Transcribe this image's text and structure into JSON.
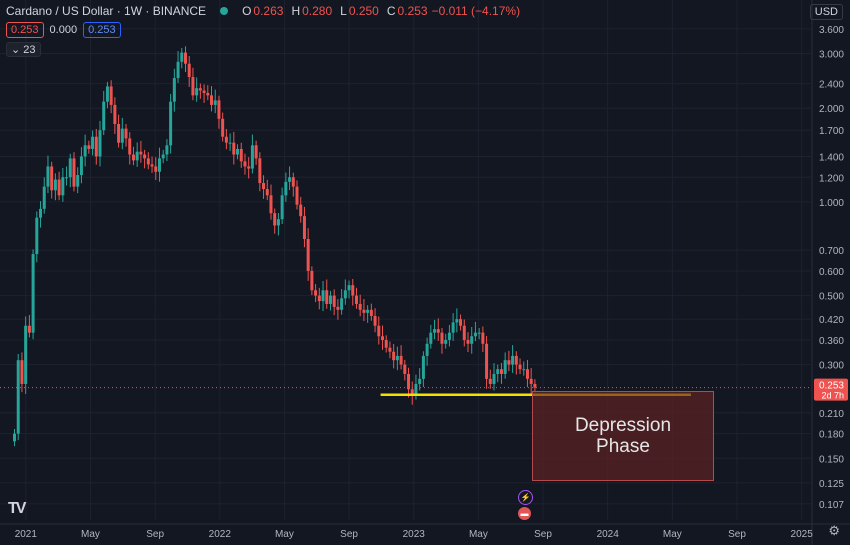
{
  "header": {
    "symbol_title": "Cardano / US Dollar · 1W · BINANCE",
    "o_label": "O",
    "o_value": "0.263",
    "h_label": "H",
    "h_value": "0.280",
    "l_label": "L",
    "l_value": "0.250",
    "c_label": "C",
    "c_value": "0.253",
    "change": "−0.011 (−4.17%)"
  },
  "order_boxes": {
    "sell": "0.253",
    "spread": "0.000",
    "buy": "0.253"
  },
  "indicator_count": "23",
  "currency_button": "USD",
  "annotation_text": "Depression\nPhase",
  "logo_text": "TV",
  "settings_icon": "gear-icon",
  "events": [
    {
      "icon": "lightning-icon",
      "color": "#a855f7"
    },
    {
      "icon": "flag-icon",
      "color": "#e25555"
    }
  ],
  "colors": {
    "up": "#26a69a",
    "down": "#ef5350",
    "support_line": "#f5e100",
    "background": "#131722"
  },
  "chart_data": {
    "type": "candlestick",
    "symbol": "Cardano / US Dollar",
    "interval": "1W",
    "exchange": "BINANCE",
    "y_scale": "log",
    "ylim": [
      0.095,
      3.9
    ],
    "y_ticks": [
      "3.600",
      "3.000",
      "2.400",
      "2.000",
      "1.700",
      "1.400",
      "1.200",
      "1.000",
      "0.700",
      "0.600",
      "0.500",
      "0.420",
      "0.360",
      "0.300",
      "0.210",
      "0.180",
      "0.150",
      "0.125",
      "0.107"
    ],
    "x_ticks": [
      "2021",
      "May",
      "Sep",
      "2022",
      "May",
      "Sep",
      "2023",
      "May",
      "Sep",
      "2024",
      "May",
      "Sep",
      "2025"
    ],
    "last_price": "0.253",
    "countdown": "2d 7h",
    "support_level": 0.24,
    "support_from": "2022-11",
    "support_to": "2024-06",
    "candles_weekly_close": [
      0.18,
      0.31,
      0.26,
      0.4,
      0.38,
      0.68,
      0.89,
      0.95,
      1.12,
      1.3,
      1.09,
      1.18,
      1.05,
      1.2,
      1.2,
      1.38,
      1.12,
      1.22,
      1.4,
      1.52,
      1.48,
      1.62,
      1.4,
      1.7,
      2.1,
      2.35,
      2.05,
      1.78,
      1.55,
      1.72,
      1.6,
      1.42,
      1.36,
      1.45,
      1.42,
      1.38,
      1.32,
      1.3,
      1.25,
      1.38,
      1.42,
      1.52,
      2.1,
      2.5,
      2.82,
      3.02,
      2.78,
      2.52,
      2.2,
      2.32,
      2.28,
      2.24,
      2.2,
      2.05,
      2.12,
      1.85,
      1.62,
      1.55,
      1.55,
      1.42,
      1.48,
      1.35,
      1.3,
      1.28,
      1.52,
      1.38,
      1.15,
      1.1,
      1.05,
      0.92,
      0.84,
      0.88,
      1.05,
      1.16,
      1.2,
      1.12,
      0.98,
      0.9,
      0.76,
      0.6,
      0.52,
      0.5,
      0.48,
      0.52,
      0.47,
      0.5,
      0.46,
      0.45,
      0.49,
      0.52,
      0.54,
      0.5,
      0.47,
      0.45,
      0.44,
      0.45,
      0.43,
      0.4,
      0.37,
      0.36,
      0.34,
      0.33,
      0.31,
      0.32,
      0.3,
      0.28,
      0.25,
      0.24,
      0.26,
      0.27,
      0.32,
      0.35,
      0.38,
      0.39,
      0.38,
      0.35,
      0.36,
      0.38,
      0.41,
      0.42,
      0.4,
      0.36,
      0.35,
      0.37,
      0.38,
      0.38,
      0.35,
      0.27,
      0.26,
      0.28,
      0.29,
      0.28,
      0.31,
      0.3,
      0.32,
      0.3,
      0.29,
      0.29,
      0.27,
      0.26,
      0.253
    ],
    "x_range": [
      "2020-12",
      "2025-01"
    ],
    "annotation": "Depression Phase"
  }
}
